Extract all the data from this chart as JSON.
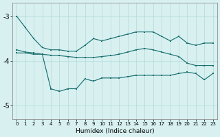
{
  "xlabel": "Humidex (Indice chaleur)",
  "x": [
    0,
    1,
    2,
    3,
    4,
    5,
    6,
    7,
    8,
    9,
    10,
    11,
    12,
    13,
    14,
    15,
    16,
    17,
    18,
    19,
    20,
    21,
    22,
    23
  ],
  "line1": [
    -3.0,
    -3.25,
    -3.5,
    -3.7,
    -3.75,
    -3.75,
    -3.78,
    -3.78,
    -3.65,
    -3.5,
    -3.55,
    -3.5,
    -3.45,
    -3.4,
    -3.35,
    -3.35,
    -3.35,
    -3.45,
    -3.55,
    -3.45,
    -3.6,
    -3.65,
    -3.6,
    -3.6
  ],
  "line2": [
    -3.75,
    -3.8,
    -3.82,
    -3.85,
    -3.87,
    -3.88,
    -3.9,
    -3.92,
    -3.92,
    -3.92,
    -3.9,
    -3.88,
    -3.85,
    -3.8,
    -3.75,
    -3.72,
    -3.75,
    -3.8,
    -3.85,
    -3.9,
    -4.05,
    -4.1,
    -4.1,
    -4.1
  ],
  "line3": [
    -3.82,
    -3.82,
    -3.85,
    -3.85,
    -4.62,
    -4.68,
    -4.62,
    -4.62,
    -4.4,
    -4.45,
    -4.38,
    -4.38,
    -4.38,
    -4.35,
    -4.32,
    -4.32,
    -4.32,
    -4.32,
    -4.32,
    -4.28,
    -4.25,
    -4.28,
    -4.42,
    -4.28
  ],
  "bg_color": "#d8f0f0",
  "grid_color": "#b8dede",
  "line_color": "#1a7070",
  "ylim": [
    -5.3,
    -2.7
  ],
  "yticks": [
    -5,
    -4,
    -3
  ],
  "figsize": [
    3.2,
    2.0
  ],
  "dpi": 100
}
